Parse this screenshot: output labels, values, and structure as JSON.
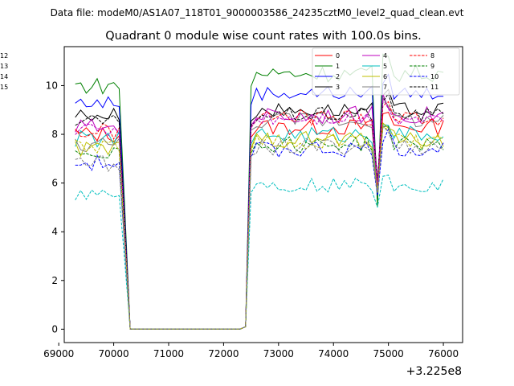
{
  "chart_data": {
    "type": "line",
    "suptitle": "Data file: modeM0/AS1A07_118T01_9000003586_24235cztM0_level2_quad_clean.evt",
    "title": "Quadrant 0 module wise count rates with 100.0s bins.",
    "xlabel": "",
    "ylabel": "",
    "x_offset_label": "+3.225e8",
    "x_range": [
      69300,
      76000
    ],
    "xlim": [
      69100,
      76350
    ],
    "ylim": [
      -0.55,
      11.6
    ],
    "xticks": [
      69000,
      70000,
      71000,
      72000,
      73000,
      74000,
      75000,
      76000
    ],
    "xtick_labels": [
      "69000",
      "70000",
      "71000",
      "72000",
      "73000",
      "74000",
      "75000",
      "76000"
    ],
    "yticks": [
      0,
      2,
      4,
      6,
      8,
      10
    ],
    "ytick_labels": [
      "0",
      "2",
      "4",
      "6",
      "8",
      "10"
    ],
    "grid": false,
    "legend_position": "top-right",
    "segments": {
      "pre_end": 70100,
      "drop_end": 70300,
      "zero_end": 72300,
      "rise_start": 72400,
      "rise_end": 72500,
      "dip_x": 74800
    },
    "series": [
      {
        "name": "0",
        "color": "#ff0000",
        "dash": "solid",
        "pre": 8.0,
        "post": 8.3,
        "amp": 0.35,
        "dip": 5.8
      },
      {
        "name": "1",
        "color": "#008000",
        "dash": "solid",
        "pre": 10.0,
        "post": 10.5,
        "amp": 0.35,
        "dip": 5.0
      },
      {
        "name": "2",
        "color": "#0000ff",
        "dash": "solid",
        "pre": 9.3,
        "post": 9.7,
        "amp": 0.3,
        "dip": 5.5
      },
      {
        "name": "3",
        "color": "#000000",
        "dash": "solid",
        "pre": 8.8,
        "post": 9.0,
        "amp": 0.3,
        "dip": 6.0
      },
      {
        "name": "4",
        "color": "#bf00bf",
        "dash": "solid",
        "pre": 8.3,
        "post": 8.8,
        "amp": 0.35,
        "dip": 5.9
      },
      {
        "name": "5",
        "color": "#00bfbf",
        "dash": "solid",
        "pre": 7.8,
        "post": 8.0,
        "amp": 0.35,
        "dip": 5.7
      },
      {
        "name": "6",
        "color": "#bfbf00",
        "dash": "solid",
        "pre": 7.4,
        "post": 7.8,
        "amp": 0.35,
        "dip": 5.6
      },
      {
        "name": "7",
        "color": "#808080",
        "dash": "solid",
        "pre": 7.6,
        "post": 8.6,
        "amp": 0.35,
        "dip": 5.7
      },
      {
        "name": "8",
        "color": "#ff0000",
        "dash": "dashed",
        "pre": 8.1,
        "post": 8.7,
        "amp": 0.35,
        "dip": 5.9
      },
      {
        "name": "9",
        "color": "#008000",
        "dash": "dashed",
        "pre": 7.3,
        "post": 7.6,
        "amp": 0.35,
        "dip": 5.6
      },
      {
        "name": "10",
        "color": "#0000ff",
        "dash": "dashed",
        "pre": 6.8,
        "post": 7.4,
        "amp": 0.35,
        "dip": 5.5
      },
      {
        "name": "11",
        "color": "#000000",
        "dash": "dashed",
        "pre": 8.5,
        "post": 8.8,
        "amp": 0.3,
        "dip": 6.1
      },
      {
        "name": "12",
        "color": "#bf00bf",
        "dash": "dashed",
        "pre": 8.2,
        "post": 8.7,
        "amp": 0.3,
        "dip": 6.0
      },
      {
        "name": "13",
        "color": "#00bfbf",
        "dash": "dashed",
        "pre": 5.6,
        "post": 5.9,
        "amp": 0.3,
        "dip": 5.0
      },
      {
        "name": "14",
        "color": "#bfbf00",
        "dash": "dashed",
        "pre": 7.5,
        "post": 7.7,
        "amp": 0.35,
        "dip": 5.6
      },
      {
        "name": "15",
        "color": "#808080",
        "dash": "dashed",
        "pre": 6.8,
        "post": 7.5,
        "amp": 0.35,
        "dip": 5.6
      }
    ]
  }
}
